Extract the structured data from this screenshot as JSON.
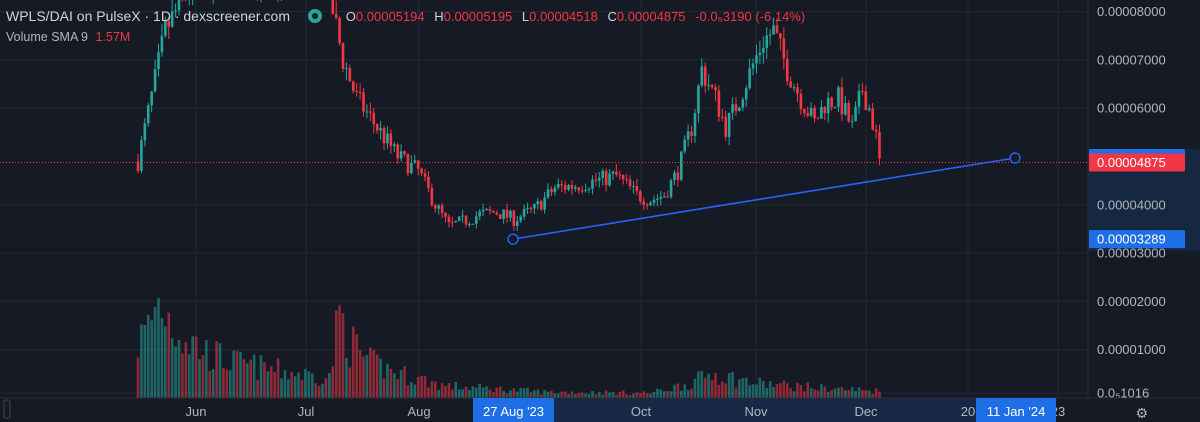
{
  "header": {
    "title": "WPLS/DAI on PulseX · 1D · dexscreener.com",
    "ohlc": [
      {
        "key": "O",
        "value": "0.00005194"
      },
      {
        "key": "H",
        "value": "0.00005195"
      },
      {
        "key": "L",
        "value": "0.00004518"
      },
      {
        "key": "C",
        "value": "0.00004875"
      },
      {
        "key": "",
        "value": "-0.0₅3190 (-6.14%)"
      }
    ],
    "volume_label": "Volume",
    "volume_sma": "SMA 9",
    "volume_value": "1.57M"
  },
  "colors": {
    "background": "#161a25",
    "up": "#26a69a",
    "down": "#f23645",
    "trendline": "#2962ff",
    "price_tag": "#f23645",
    "marker_tag": "#1e6fe6"
  },
  "chart_data": {
    "type": "candlestick",
    "y_axis": {
      "ticks": [
        {
          "value": 8e-05,
          "label": "0.00008000"
        },
        {
          "value": 7e-05,
          "label": "0.00007000"
        },
        {
          "value": 6e-05,
          "label": "0.00006000"
        },
        {
          "value": 4e-05,
          "label": "0.00004000"
        },
        {
          "value": 3e-05,
          "label": "0.00003000"
        },
        {
          "value": 2e-05,
          "label": "0.00002000"
        },
        {
          "value": 1e-05,
          "label": "0.00001000"
        },
        {
          "value": 1.016e-06,
          "label": "0.0₅1016"
        }
      ],
      "range": [
        0,
        8.24e-05
      ]
    },
    "x_axis": {
      "labels": [
        "Jun",
        "Jul",
        "Aug",
        "Oct",
        "Nov",
        "Dec",
        "20",
        "23"
      ],
      "highlighted": [
        "27 Aug '23",
        "11 Jan '24"
      ]
    },
    "price_tags": [
      {
        "value": 4.969e-05,
        "label": "0.00004969",
        "kind": "marker"
      },
      {
        "value": 4.875e-05,
        "label": "0.00004875",
        "kind": "last"
      },
      {
        "value": 3.289e-05,
        "label": "0.00003289",
        "kind": "marker"
      }
    ],
    "last_price": 4.875e-05,
    "trendline": {
      "from": {
        "date": "27 Aug '23",
        "price": 3.289e-05
      },
      "to": {
        "date": "11 Jan '24",
        "price": 4.969e-05
      }
    },
    "price_path": [
      [
        0,
        4.9e-05
      ],
      [
        8,
        7.6e-05
      ],
      [
        15,
        8.5e-05
      ],
      [
        28,
        8.8e-05
      ],
      [
        40,
        8.7e-05
      ],
      [
        55,
        8.7e-05
      ],
      [
        60,
        7e-05
      ],
      [
        64,
        6.2e-05
      ],
      [
        70,
        5.6e-05
      ],
      [
        76,
        5e-05
      ],
      [
        82,
        4.7e-05
      ],
      [
        87,
        4e-05
      ],
      [
        91,
        3.55e-05
      ],
      [
        95,
        3.65e-05
      ],
      [
        100,
        3.8e-05
      ],
      [
        105,
        3.85e-05
      ],
      [
        110,
        3.7e-05
      ],
      [
        116,
        3.9e-05
      ],
      [
        122,
        4.35e-05
      ],
      [
        128,
        4.4e-05
      ],
      [
        134,
        4.5e-05
      ],
      [
        140,
        4.6e-05
      ],
      [
        146,
        4.2e-05
      ],
      [
        150,
        4.1e-05
      ],
      [
        154,
        4.2e-05
      ],
      [
        158,
        4.7e-05
      ],
      [
        162,
        5.6e-05
      ],
      [
        165,
        6.8e-05
      ],
      [
        169,
        6.2e-05
      ],
      [
        172,
        5.6e-05
      ],
      [
        176,
        6.2e-05
      ],
      [
        180,
        6.9e-05
      ],
      [
        183,
        7.4e-05
      ],
      [
        186,
        7.6e-05
      ],
      [
        190,
        6.8e-05
      ],
      [
        194,
        6.2e-05
      ],
      [
        198,
        5.7e-05
      ],
      [
        201,
        6.1e-05
      ],
      [
        205,
        6.2e-05
      ],
      [
        209,
        5.6e-05
      ],
      [
        212,
        6.4e-05
      ],
      [
        214,
        6e-05
      ],
      [
        216,
        5.4e-05
      ],
      [
        217,
        4.9e-05
      ]
    ],
    "volume_path": [
      [
        0,
        0.55
      ],
      [
        3,
        0.7
      ],
      [
        6,
        1.0
      ],
      [
        10,
        0.75
      ],
      [
        14,
        0.6
      ],
      [
        20,
        0.45
      ],
      [
        28,
        0.35
      ],
      [
        40,
        0.28
      ],
      [
        56,
        0.2
      ],
      [
        59,
        0.85
      ],
      [
        62,
        0.55
      ],
      [
        68,
        0.35
      ],
      [
        76,
        0.25
      ],
      [
        90,
        0.12
      ],
      [
        120,
        0.06
      ],
      [
        150,
        0.05
      ],
      [
        162,
        0.15
      ],
      [
        168,
        0.25
      ],
      [
        180,
        0.15
      ],
      [
        200,
        0.1
      ],
      [
        217,
        0.07
      ]
    ]
  }
}
